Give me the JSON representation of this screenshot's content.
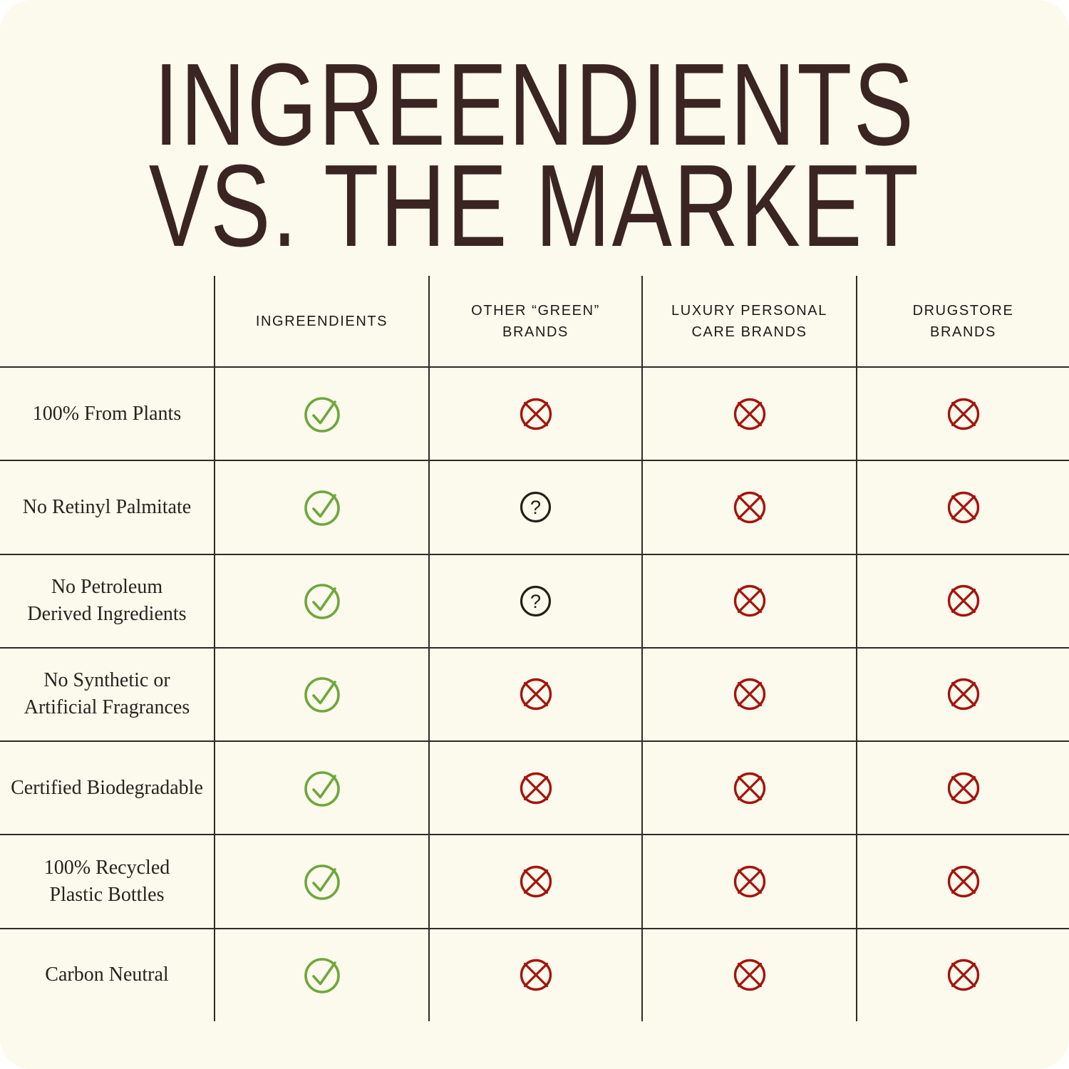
{
  "page": {
    "background_color": "#FCF9ED",
    "corner_style": "rounded"
  },
  "title": {
    "line1": "INGREENDIENTS",
    "line2": "VS. THE MARKET",
    "color": "#3A2522"
  },
  "table": {
    "corner_label": "",
    "columns": [
      {
        "label": "INGREENDIENTS"
      },
      {
        "label": "OTHER “GREEN”\nBRANDS"
      },
      {
        "label": "LUXURY PERSONAL\nCARE BRANDS"
      },
      {
        "label": "DRUGSTORE\nBRANDS"
      }
    ],
    "rows": [
      {
        "label": "100% From Plants",
        "values": [
          "yes",
          "no",
          "no",
          "no"
        ]
      },
      {
        "label": "No Retinyl Palmitate",
        "values": [
          "yes",
          "unknown",
          "no",
          "no"
        ]
      },
      {
        "label": "No Petroleum\nDerived Ingredients",
        "values": [
          "yes",
          "unknown",
          "no",
          "no"
        ]
      },
      {
        "label": "No Synthetic or\nArtificial Fragrances",
        "values": [
          "yes",
          "no",
          "no",
          "no"
        ]
      },
      {
        "label": "Certified Biodegradable",
        "values": [
          "yes",
          "no",
          "no",
          "no"
        ]
      },
      {
        "label": "100% Recycled\nPlastic Bottles",
        "values": [
          "yes",
          "no",
          "no",
          "no"
        ]
      },
      {
        "label": "Carbon Neutral",
        "values": [
          "yes",
          "no",
          "no",
          "no"
        ]
      }
    ],
    "icons": {
      "yes": {
        "name": "check-circle-icon",
        "color": "#70A73C"
      },
      "no": {
        "name": "x-circle-icon",
        "color": "#A5130D"
      },
      "unknown": {
        "name": "question-circle-icon",
        "color": "#242019"
      }
    },
    "grid_line_color": "#2F2B25"
  },
  "chart_data": {
    "type": "table",
    "title": "INGREENDIENTS VS. THE MARKET",
    "columns": [
      "INGREENDIENTS",
      "OTHER “GREEN” BRANDS",
      "LUXURY PERSONAL CARE BRANDS",
      "DRUGSTORE BRANDS"
    ],
    "rows": [
      {
        "feature": "100% From Plants",
        "values": [
          "yes",
          "no",
          "no",
          "no"
        ]
      },
      {
        "feature": "No Retinyl Palmitate",
        "values": [
          "yes",
          "unknown",
          "no",
          "no"
        ]
      },
      {
        "feature": "No Petroleum Derived Ingredients",
        "values": [
          "yes",
          "unknown",
          "no",
          "no"
        ]
      },
      {
        "feature": "No Synthetic or Artificial Fragrances",
        "values": [
          "yes",
          "no",
          "no",
          "no"
        ]
      },
      {
        "feature": "Certified Biodegradable",
        "values": [
          "yes",
          "no",
          "no",
          "no"
        ]
      },
      {
        "feature": "100% Recycled Plastic Bottles",
        "values": [
          "yes",
          "no",
          "no",
          "no"
        ]
      },
      {
        "feature": "Carbon Neutral",
        "values": [
          "yes",
          "no",
          "no",
          "no"
        ]
      }
    ],
    "value_legend": {
      "yes": "green check-circle = has attribute",
      "no": "red x-circle = lacks attribute",
      "unknown": "black question-circle = unclear"
    },
    "layout": {
      "grid": "on",
      "header_row": "top",
      "feature_labels": "left column"
    }
  }
}
